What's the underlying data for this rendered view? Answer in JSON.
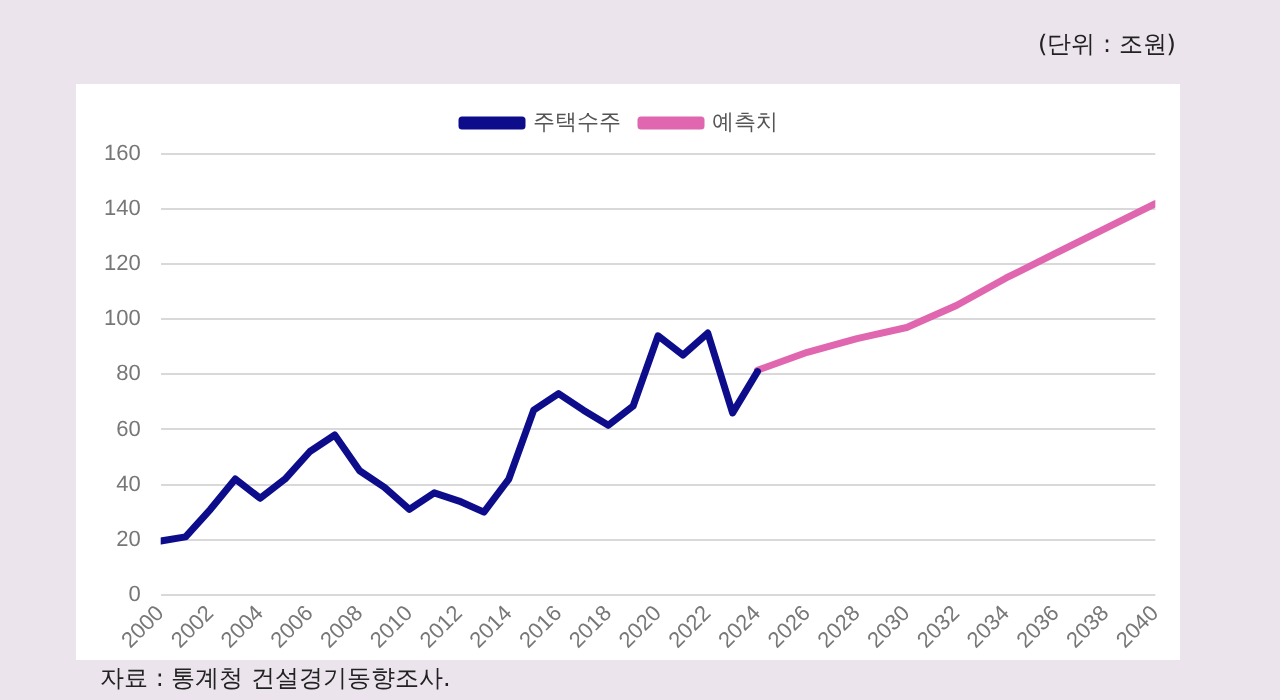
{
  "chart_data": {
    "type": "line",
    "annotations": [
      "(단위 : 조원)",
      "자료 : 통계청 건설경기동향조사."
    ],
    "series": [
      {
        "name": "주택수주",
        "color": "#0d0d8c",
        "x": [
          2000,
          2001,
          2002,
          2003,
          2004,
          2005,
          2006,
          2007,
          2008,
          2009,
          2010,
          2011,
          2012,
          2013,
          2014,
          2015,
          2016,
          2017,
          2018,
          2019,
          2020,
          2021,
          2022,
          2023,
          2024
        ],
        "values": [
          19.5,
          21,
          31,
          42,
          35,
          42,
          52,
          58,
          45,
          39,
          31,
          37,
          34,
          30,
          42,
          67,
          73,
          67,
          61.5,
          68.5,
          94,
          87,
          95,
          66,
          81
        ]
      },
      {
        "name": "예측치",
        "color": "#e066b0",
        "x": [
          2024,
          2026,
          2028,
          2030,
          2032,
          2034,
          2036,
          2038,
          2040
        ],
        "values": [
          81.5,
          88,
          93,
          97,
          105,
          115,
          124,
          133,
          142
        ]
      }
    ],
    "xlim": [
      2000,
      2040
    ],
    "xticks": [
      2000,
      2002,
      2004,
      2006,
      2008,
      2010,
      2012,
      2014,
      2016,
      2018,
      2020,
      2022,
      2024,
      2026,
      2028,
      2030,
      2032,
      2034,
      2036,
      2038,
      2040
    ],
    "ylim": [
      0,
      160
    ],
    "yticks": [
      0,
      20,
      40,
      60,
      80,
      100,
      120,
      140,
      160
    ],
    "grid": "y",
    "legend": "top",
    "marker": "none",
    "line_style": "solid"
  }
}
